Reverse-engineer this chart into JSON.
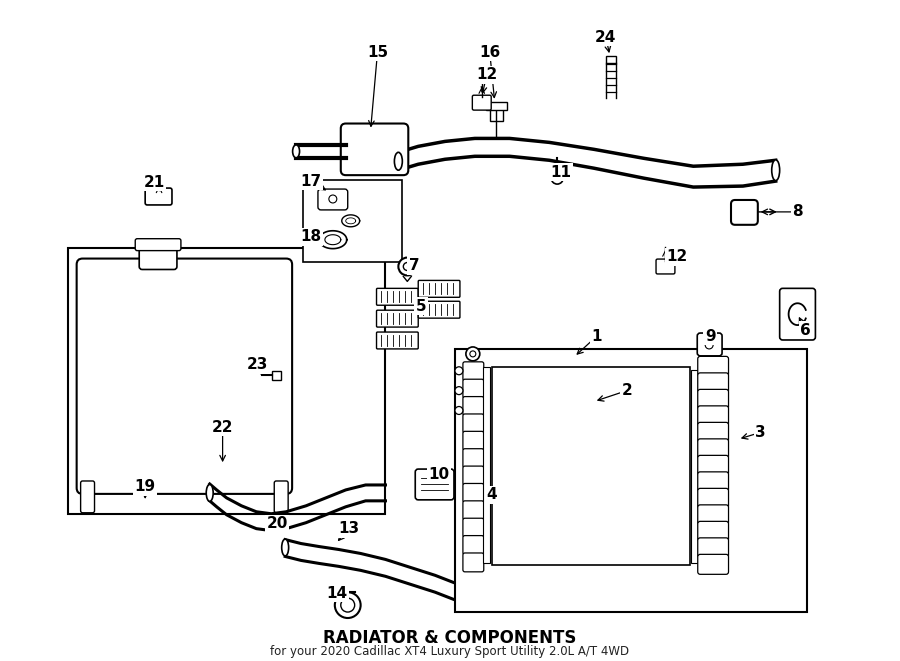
{
  "title": "RADIATOR & COMPONENTS",
  "subtitle": "for your 2020 Cadillac XT4 Luxury Sport Utility 2.0L A/T 4WD",
  "bg_color": "#ffffff",
  "line_color": "#000000",
  "fig_width": 9.0,
  "fig_height": 6.61,
  "dpi": 100,
  "label_fontsize": 11,
  "title_fontsize": 12,
  "subtitle_fontsize": 8.5
}
